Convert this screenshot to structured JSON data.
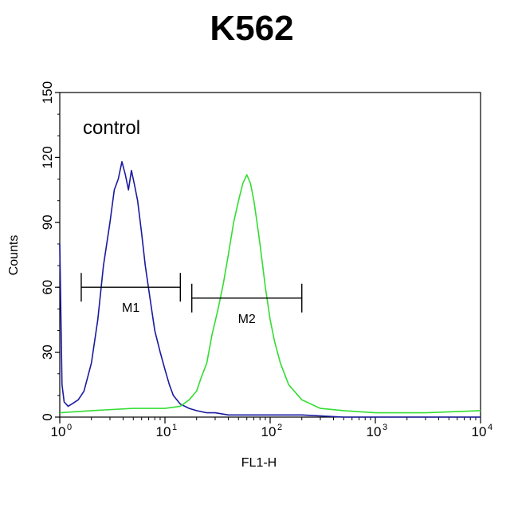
{
  "chart_data": {
    "type": "line",
    "title": "K562",
    "xlabel": "FL1-H",
    "ylabel": "Counts",
    "xscale": "log",
    "xlim": [
      1,
      10000
    ],
    "ylim": [
      0,
      150
    ],
    "x_ticks": [
      {
        "base": "10",
        "exp": "0",
        "value": 1
      },
      {
        "base": "10",
        "exp": "1",
        "value": 10
      },
      {
        "base": "10",
        "exp": "2",
        "value": 100
      },
      {
        "base": "10",
        "exp": "3",
        "value": 1000
      },
      {
        "base": "10",
        "exp": "4",
        "value": 10000
      }
    ],
    "y_ticks": [
      "0",
      "30",
      "60",
      "90",
      "120",
      "150"
    ],
    "annotation": "control",
    "series": [
      {
        "color": "#1a1aa0",
        "x": [
          1.0,
          1.05,
          1.1,
          1.2,
          1.3,
          1.5,
          1.7,
          2.0,
          2.3,
          2.6,
          3.0,
          3.3,
          3.6,
          3.9,
          4.2,
          4.5,
          4.8,
          5.1,
          5.5,
          6.0,
          6.5,
          7.2,
          8.0,
          9.0,
          10.0,
          11.0,
          12.0,
          14.0,
          17.0,
          20.0,
          25.0,
          30.0,
          40.0,
          60.0,
          100.0,
          200.0,
          500.0,
          1000.0,
          3000.0,
          10000.0
        ],
        "y": [
          80,
          15,
          7,
          5,
          6,
          8,
          12,
          25,
          45,
          70,
          90,
          105,
          110,
          118,
          112,
          105,
          114,
          108,
          100,
          85,
          70,
          55,
          40,
          30,
          22,
          15,
          10,
          6,
          4,
          3,
          2,
          2,
          1,
          1,
          1,
          1,
          0,
          0,
          0,
          0
        ]
      },
      {
        "color": "#33dd33",
        "x": [
          1.0,
          2.0,
          5.0,
          10.0,
          14.0,
          17.0,
          20.0,
          22.0,
          25.0,
          28.0,
          32.0,
          36.0,
          40.0,
          45.0,
          50.0,
          55.0,
          60.0,
          65.0,
          70.0,
          75.0,
          80.0,
          90.0,
          100.0,
          110.0,
          125.0,
          150.0,
          200.0,
          300.0,
          500.0,
          1000.0,
          3000.0,
          10000.0
        ],
        "y": [
          2,
          3,
          4,
          4,
          5,
          8,
          12,
          18,
          25,
          38,
          50,
          62,
          75,
          90,
          100,
          108,
          112,
          108,
          100,
          90,
          80,
          60,
          45,
          35,
          25,
          15,
          8,
          4,
          3,
          2,
          2,
          3
        ]
      }
    ],
    "gates": [
      {
        "label": "M1",
        "x_start": 1.6,
        "x_end": 14.0,
        "y": 60
      },
      {
        "label": "M2",
        "x_start": 18.0,
        "x_end": 200.0,
        "y": 55
      }
    ]
  }
}
